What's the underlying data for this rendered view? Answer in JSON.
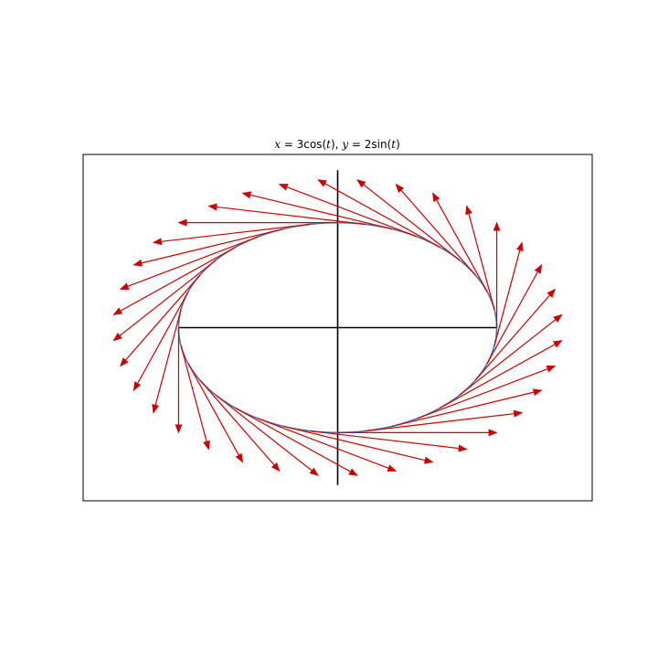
{
  "chart_data": {
    "type": "quiver",
    "title": {
      "parts": [
        {
          "text": "x",
          "italic": true
        },
        {
          "text": " = 3cos(",
          "italic": false
        },
        {
          "text": "t",
          "italic": true
        },
        {
          "text": "), ",
          "italic": false
        },
        {
          "text": "y",
          "italic": true
        },
        {
          "text": " = 2sin(",
          "italic": false
        },
        {
          "text": "t",
          "italic": true
        },
        {
          "text": ")",
          "italic": false
        }
      ]
    },
    "xlabel": "",
    "ylabel": "",
    "xlim": [
      -4.8,
      4.8
    ],
    "ylim": [
      -3.3,
      3.3
    ],
    "ticks_visible": false,
    "grid": false,
    "curve": {
      "name": "ellipse",
      "a": 3,
      "b": 2,
      "color": "#4c72b0"
    },
    "axes_lines": {
      "color": "#000000",
      "horizontal": {
        "x": [
          -3,
          3
        ],
        "y": 0
      },
      "vertical": {
        "x": 0,
        "y": [
          -3,
          3
        ]
      }
    },
    "vectors": {
      "color": "#cc0000",
      "count": 36,
      "t_range": [
        0,
        6.2832
      ],
      "direction": "tangent (-3sin t, 2cos t)",
      "scale": 1
    }
  },
  "colors": {
    "background": "#ffffff",
    "frame": "#000000"
  }
}
